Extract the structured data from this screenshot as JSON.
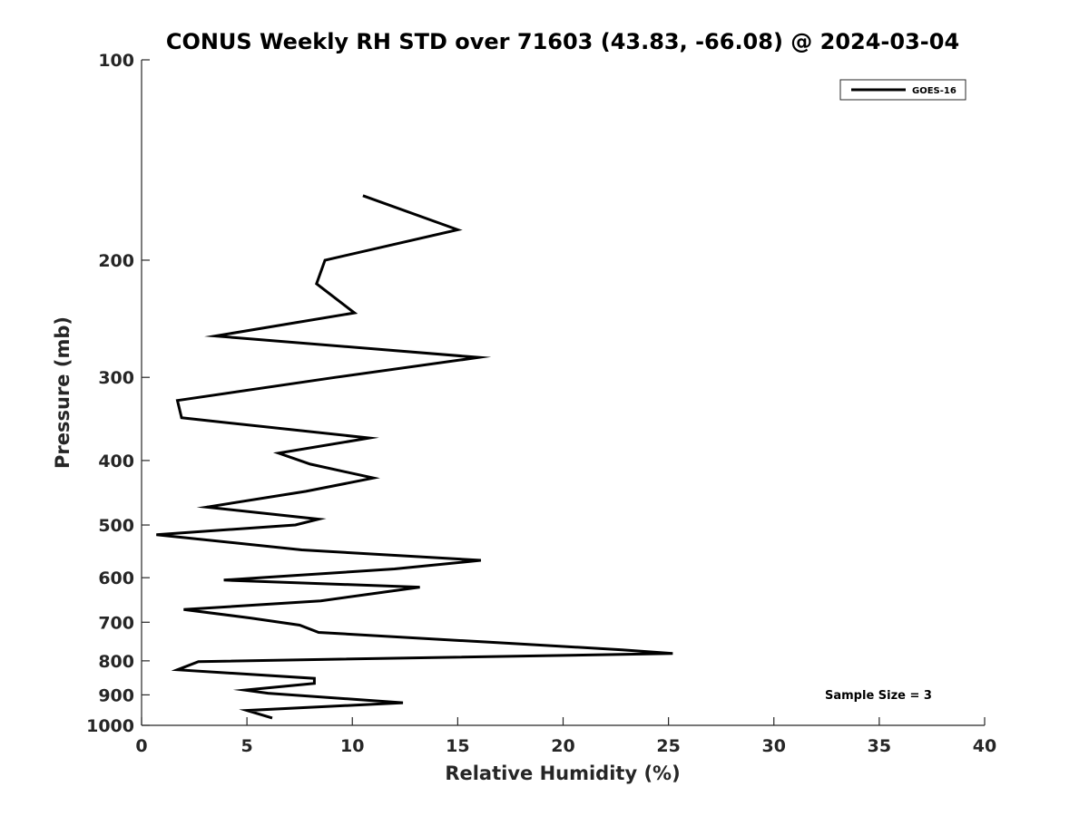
{
  "chart_data": {
    "type": "line",
    "title": "CONUS Weekly RH STD over 71603 (43.83, -66.08) @ 2024-03-04",
    "xlabel": "Relative Humidity (%)",
    "ylabel": "Pressure (mb)",
    "xlim": [
      0,
      40
    ],
    "ylim": [
      100,
      1000
    ],
    "yscale": "log",
    "reverse_y": true,
    "x_ticks": [
      0,
      5,
      10,
      15,
      20,
      25,
      30,
      35,
      40
    ],
    "y_ticks": [
      100,
      200,
      300,
      400,
      500,
      600,
      700,
      800,
      900,
      1000
    ],
    "legend": {
      "position": "top-right",
      "entries": [
        "GOES-16"
      ]
    },
    "annotation": "Sample Size = 3",
    "series": [
      {
        "name": "GOES-16",
        "color": "#000000",
        "points": [
          [
            10.5,
            160
          ],
          [
            15.0,
            180
          ],
          [
            8.7,
            200
          ],
          [
            8.3,
            217
          ],
          [
            10.1,
            240
          ],
          [
            3.5,
            260
          ],
          [
            16.0,
            280
          ],
          [
            9.2,
            300
          ],
          [
            1.7,
            325
          ],
          [
            1.9,
            345
          ],
          [
            10.8,
            370
          ],
          [
            6.5,
            390
          ],
          [
            8.0,
            405
          ],
          [
            11.0,
            425
          ],
          [
            7.8,
            445
          ],
          [
            3.1,
            470
          ],
          [
            8.4,
            490
          ],
          [
            7.3,
            500
          ],
          [
            0.7,
            517
          ],
          [
            7.6,
            545
          ],
          [
            16.1,
            565
          ],
          [
            12.0,
            582
          ],
          [
            3.9,
            605
          ],
          [
            13.2,
            620
          ],
          [
            8.5,
            650
          ],
          [
            2.0,
            670
          ],
          [
            5.2,
            690
          ],
          [
            7.5,
            707
          ],
          [
            8.4,
            725
          ],
          [
            16.5,
            750
          ],
          [
            22.8,
            770
          ],
          [
            25.2,
            780
          ],
          [
            2.7,
            802
          ],
          [
            1.7,
            825
          ],
          [
            8.2,
            850
          ],
          [
            8.2,
            865
          ],
          [
            4.9,
            885
          ],
          [
            6.0,
            895
          ],
          [
            12.4,
            925
          ],
          [
            5.0,
            950
          ],
          [
            6.2,
            975
          ]
        ]
      }
    ]
  }
}
